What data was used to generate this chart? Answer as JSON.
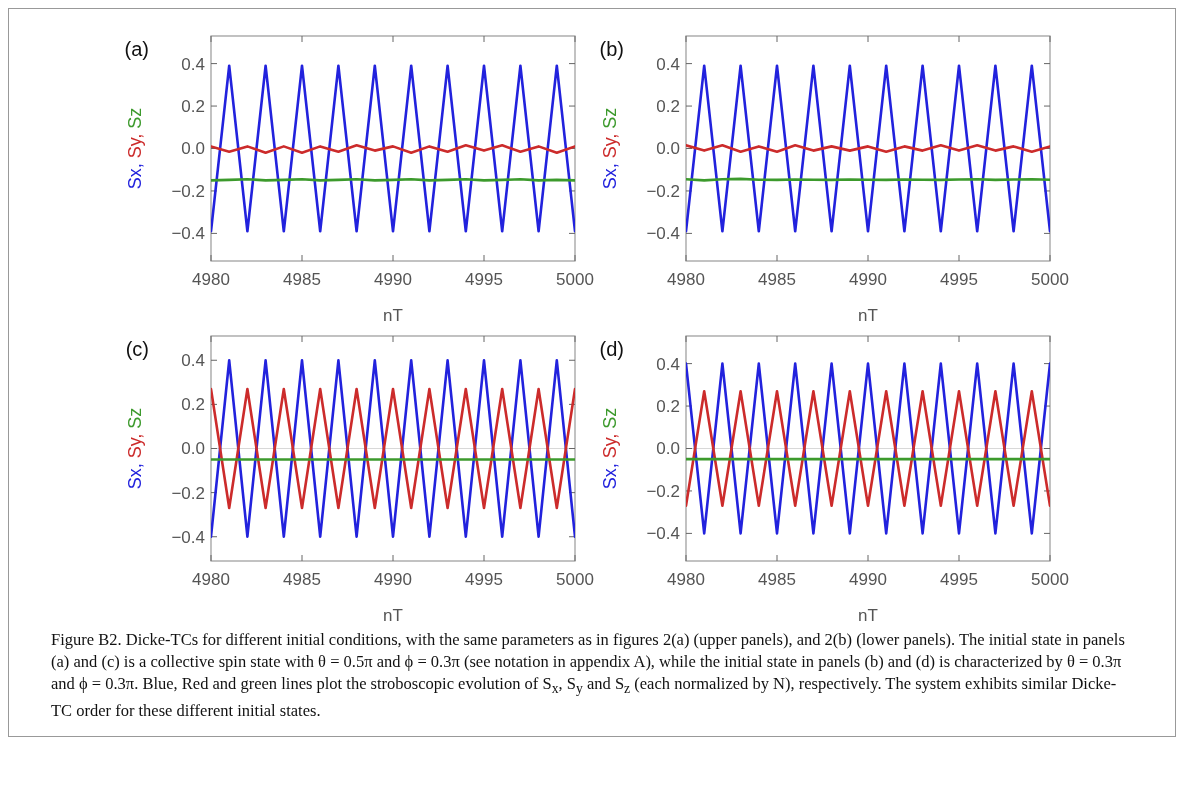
{
  "chart_data": [
    {
      "type": "line",
      "title": "(a)",
      "xlabel": "nT",
      "ylabel": "Sx, Sy, Sz",
      "x": [
        4980,
        4981,
        4982,
        4983,
        4984,
        4985,
        4986,
        4987,
        4988,
        4989,
        4990,
        4991,
        4992,
        4993,
        4994,
        4995,
        4996,
        4997,
        4998,
        4999,
        5000
      ],
      "xlim": [
        4980,
        5000
      ],
      "xticks": [
        4980,
        4985,
        4990,
        4995,
        5000
      ],
      "ylim": [
        -0.53,
        0.53
      ],
      "yticks": [
        {
          "value": 0.4,
          "label": "0.4"
        },
        {
          "value": 0.2,
          "label": "0.2"
        },
        {
          "value": 0,
          "label": "0.0"
        },
        {
          "value": -0.2,
          "label": "−0.2"
        },
        {
          "value": -0.4,
          "label": "−0.4"
        }
      ],
      "grid": false,
      "marker": "none",
      "line_style": "solid",
      "series": [
        {
          "color": "#2222dd",
          "values": [
            -0.39,
            0.39,
            -0.39,
            0.39,
            -0.39,
            0.39,
            -0.39,
            0.39,
            -0.39,
            0.39,
            -0.39,
            0.39,
            -0.39,
            0.39,
            -0.39,
            0.39,
            -0.39,
            0.39,
            -0.39,
            0.39,
            -0.39
          ]
        },
        {
          "color": "#cc2b2b",
          "values": [
            0.01,
            -0.015,
            0.01,
            -0.02,
            0.01,
            -0.02,
            0.01,
            -0.015,
            0.015,
            -0.01,
            0.01,
            -0.02,
            0.01,
            -0.015,
            0.015,
            -0.01,
            0.015,
            -0.015,
            0.01,
            -0.02,
            0.01
          ]
        },
        {
          "color": "#3c9a2c",
          "values": [
            -0.15,
            -0.148,
            -0.145,
            -0.15,
            -0.148,
            -0.145,
            -0.15,
            -0.148,
            -0.145,
            -0.15,
            -0.148,
            -0.145,
            -0.15,
            -0.148,
            -0.145,
            -0.15,
            -0.148,
            -0.145,
            -0.15,
            -0.148,
            -0.15
          ]
        }
      ]
    },
    {
      "type": "line",
      "title": "(b)",
      "xlabel": "nT",
      "ylabel": "Sx, Sy, Sz",
      "x": [
        4980,
        4981,
        4982,
        4983,
        4984,
        4985,
        4986,
        4987,
        4988,
        4989,
        4990,
        4991,
        4992,
        4993,
        4994,
        4995,
        4996,
        4997,
        4998,
        4999,
        5000
      ],
      "xlim": [
        4980,
        5000
      ],
      "xticks": [
        4980,
        4985,
        4990,
        4995,
        5000
      ],
      "ylim": [
        -0.53,
        0.53
      ],
      "yticks": [
        {
          "value": 0.4,
          "label": "0.4"
        },
        {
          "value": 0.2,
          "label": "0.2"
        },
        {
          "value": 0,
          "label": "0.0"
        },
        {
          "value": -0.2,
          "label": "−0.2"
        },
        {
          "value": -0.4,
          "label": "−0.4"
        }
      ],
      "grid": false,
      "marker": "none",
      "line_style": "solid",
      "series": [
        {
          "color": "#2222dd",
          "values": [
            -0.39,
            0.39,
            -0.39,
            0.39,
            -0.39,
            0.39,
            -0.39,
            0.39,
            -0.39,
            0.39,
            -0.39,
            0.39,
            -0.39,
            0.39,
            -0.39,
            0.39,
            -0.39,
            0.39,
            -0.39,
            0.39,
            -0.39
          ]
        },
        {
          "color": "#cc2b2b",
          "values": [
            0.015,
            -0.01,
            0.015,
            -0.015,
            0.01,
            -0.015,
            0.015,
            -0.01,
            0.01,
            -0.01,
            0.01,
            -0.015,
            0.01,
            -0.01,
            0.015,
            -0.01,
            0.015,
            -0.01,
            0.01,
            -0.015,
            0.01
          ]
        },
        {
          "color": "#3c9a2c",
          "values": [
            -0.145,
            -0.15,
            -0.145,
            -0.143,
            -0.147,
            -0.148,
            -0.146,
            -0.147,
            -0.148,
            -0.146,
            -0.147,
            -0.148,
            -0.146,
            -0.147,
            -0.148,
            -0.146,
            -0.145,
            -0.148,
            -0.146,
            -0.145,
            -0.147
          ]
        }
      ]
    },
    {
      "type": "line",
      "title": "(c)",
      "xlabel": "nT",
      "ylabel": "Sx, Sy, Sz",
      "x": [
        4980,
        4981,
        4982,
        4983,
        4984,
        4985,
        4986,
        4987,
        4988,
        4989,
        4990,
        4991,
        4992,
        4993,
        4994,
        4995,
        4996,
        4997,
        4998,
        4999,
        5000
      ],
      "xlim": [
        4980,
        5000
      ],
      "xticks": [
        4980,
        4985,
        4990,
        4995,
        5000
      ],
      "ylim": [
        -0.51,
        0.51
      ],
      "yticks": [
        {
          "value": 0.4,
          "label": "0.4"
        },
        {
          "value": 0.2,
          "label": "0.2"
        },
        {
          "value": 0,
          "label": "0.0"
        },
        {
          "value": -0.2,
          "label": "−0.2"
        },
        {
          "value": -0.4,
          "label": "−0.4"
        }
      ],
      "grid": false,
      "marker": "none",
      "line_style": "solid",
      "ref_lines": [
        {
          "axis": "y",
          "value": 0,
          "color": "#d8d8d8"
        }
      ],
      "series": [
        {
          "color": "#2222dd",
          "values": [
            -0.4,
            0.4,
            -0.4,
            0.4,
            -0.4,
            0.4,
            -0.4,
            0.4,
            -0.4,
            0.4,
            -0.4,
            0.4,
            -0.4,
            0.4,
            -0.4,
            0.4,
            -0.4,
            0.4,
            -0.4,
            0.4,
            -0.4
          ]
        },
        {
          "color": "#cc2b2b",
          "values": [
            0.27,
            -0.27,
            0.27,
            -0.27,
            0.27,
            -0.27,
            0.27,
            -0.27,
            0.27,
            -0.27,
            0.27,
            -0.27,
            0.27,
            -0.27,
            0.27,
            -0.27,
            0.27,
            -0.27,
            0.27,
            -0.27,
            0.27
          ]
        },
        {
          "color": "#3c9a2c",
          "values": [
            -0.05,
            -0.05,
            -0.05,
            -0.05,
            -0.05,
            -0.05,
            -0.05,
            -0.05,
            -0.05,
            -0.05,
            -0.05,
            -0.05,
            -0.05,
            -0.05,
            -0.05,
            -0.05,
            -0.05,
            -0.05,
            -0.05,
            -0.05,
            -0.05
          ]
        }
      ]
    },
    {
      "type": "line",
      "title": "(d)",
      "xlabel": "nT",
      "ylabel": "Sx, Sy, Sz",
      "x": [
        4980,
        4981,
        4982,
        4983,
        4984,
        4985,
        4986,
        4987,
        4988,
        4989,
        4990,
        4991,
        4992,
        4993,
        4994,
        4995,
        4996,
        4997,
        4998,
        4999,
        5000
      ],
      "xlim": [
        4980,
        5000
      ],
      "xticks": [
        4980,
        4985,
        4990,
        4995,
        5000
      ],
      "ylim": [
        -0.53,
        0.53
      ],
      "yticks": [
        {
          "value": 0.4,
          "label": "0.4"
        },
        {
          "value": 0.2,
          "label": "0.2"
        },
        {
          "value": 0,
          "label": "0.0"
        },
        {
          "value": -0.2,
          "label": "−0.2"
        },
        {
          "value": -0.4,
          "label": "−0.4"
        }
      ],
      "grid": false,
      "marker": "none",
      "line_style": "solid",
      "ref_lines": [
        {
          "axis": "y",
          "value": 0,
          "color": "#d8d8d8"
        }
      ],
      "series": [
        {
          "color": "#2222dd",
          "values": [
            0.4,
            -0.4,
            0.4,
            -0.4,
            0.4,
            -0.4,
            0.4,
            -0.4,
            0.4,
            -0.4,
            0.4,
            -0.4,
            0.4,
            -0.4,
            0.4,
            -0.4,
            0.4,
            -0.4,
            0.4,
            -0.4,
            0.4
          ]
        },
        {
          "color": "#cc2b2b",
          "values": [
            -0.27,
            0.27,
            -0.27,
            0.27,
            -0.27,
            0.27,
            -0.27,
            0.27,
            -0.27,
            0.27,
            -0.27,
            0.27,
            -0.27,
            0.27,
            -0.27,
            0.27,
            -0.27,
            0.27,
            -0.27,
            0.27,
            -0.27
          ]
        },
        {
          "color": "#3c9a2c",
          "values": [
            -0.05,
            -0.05,
            -0.05,
            -0.05,
            -0.05,
            -0.05,
            -0.05,
            -0.05,
            -0.05,
            -0.05,
            -0.05,
            -0.05,
            -0.05,
            -0.05,
            -0.05,
            -0.05,
            -0.05,
            -0.05,
            -0.05,
            -0.05,
            -0.05
          ]
        }
      ],
      "annotations": [
        "Figure B2. Dicke-TCs for different initial conditions, with the same parameters as in figures 2(a) (upper panels), and 2(b) (lower panels). The initial state in panels (a) and (c) is a collective spin state with θ = 0.5π and ϕ = 0.3π (see notation in appendix A), while the initial state in panels (b) and (d) is characterized by θ = 0.3π and ϕ = 0.3π. Blue, Red and green lines plot the stroboscopic evolution of S$_{x}$, S$_{y}$ and S$_{z}$ (each normalized by N), respectively. The system exhibits similar Dicke-TC order for these different initial states."
      ]
    }
  ]
}
